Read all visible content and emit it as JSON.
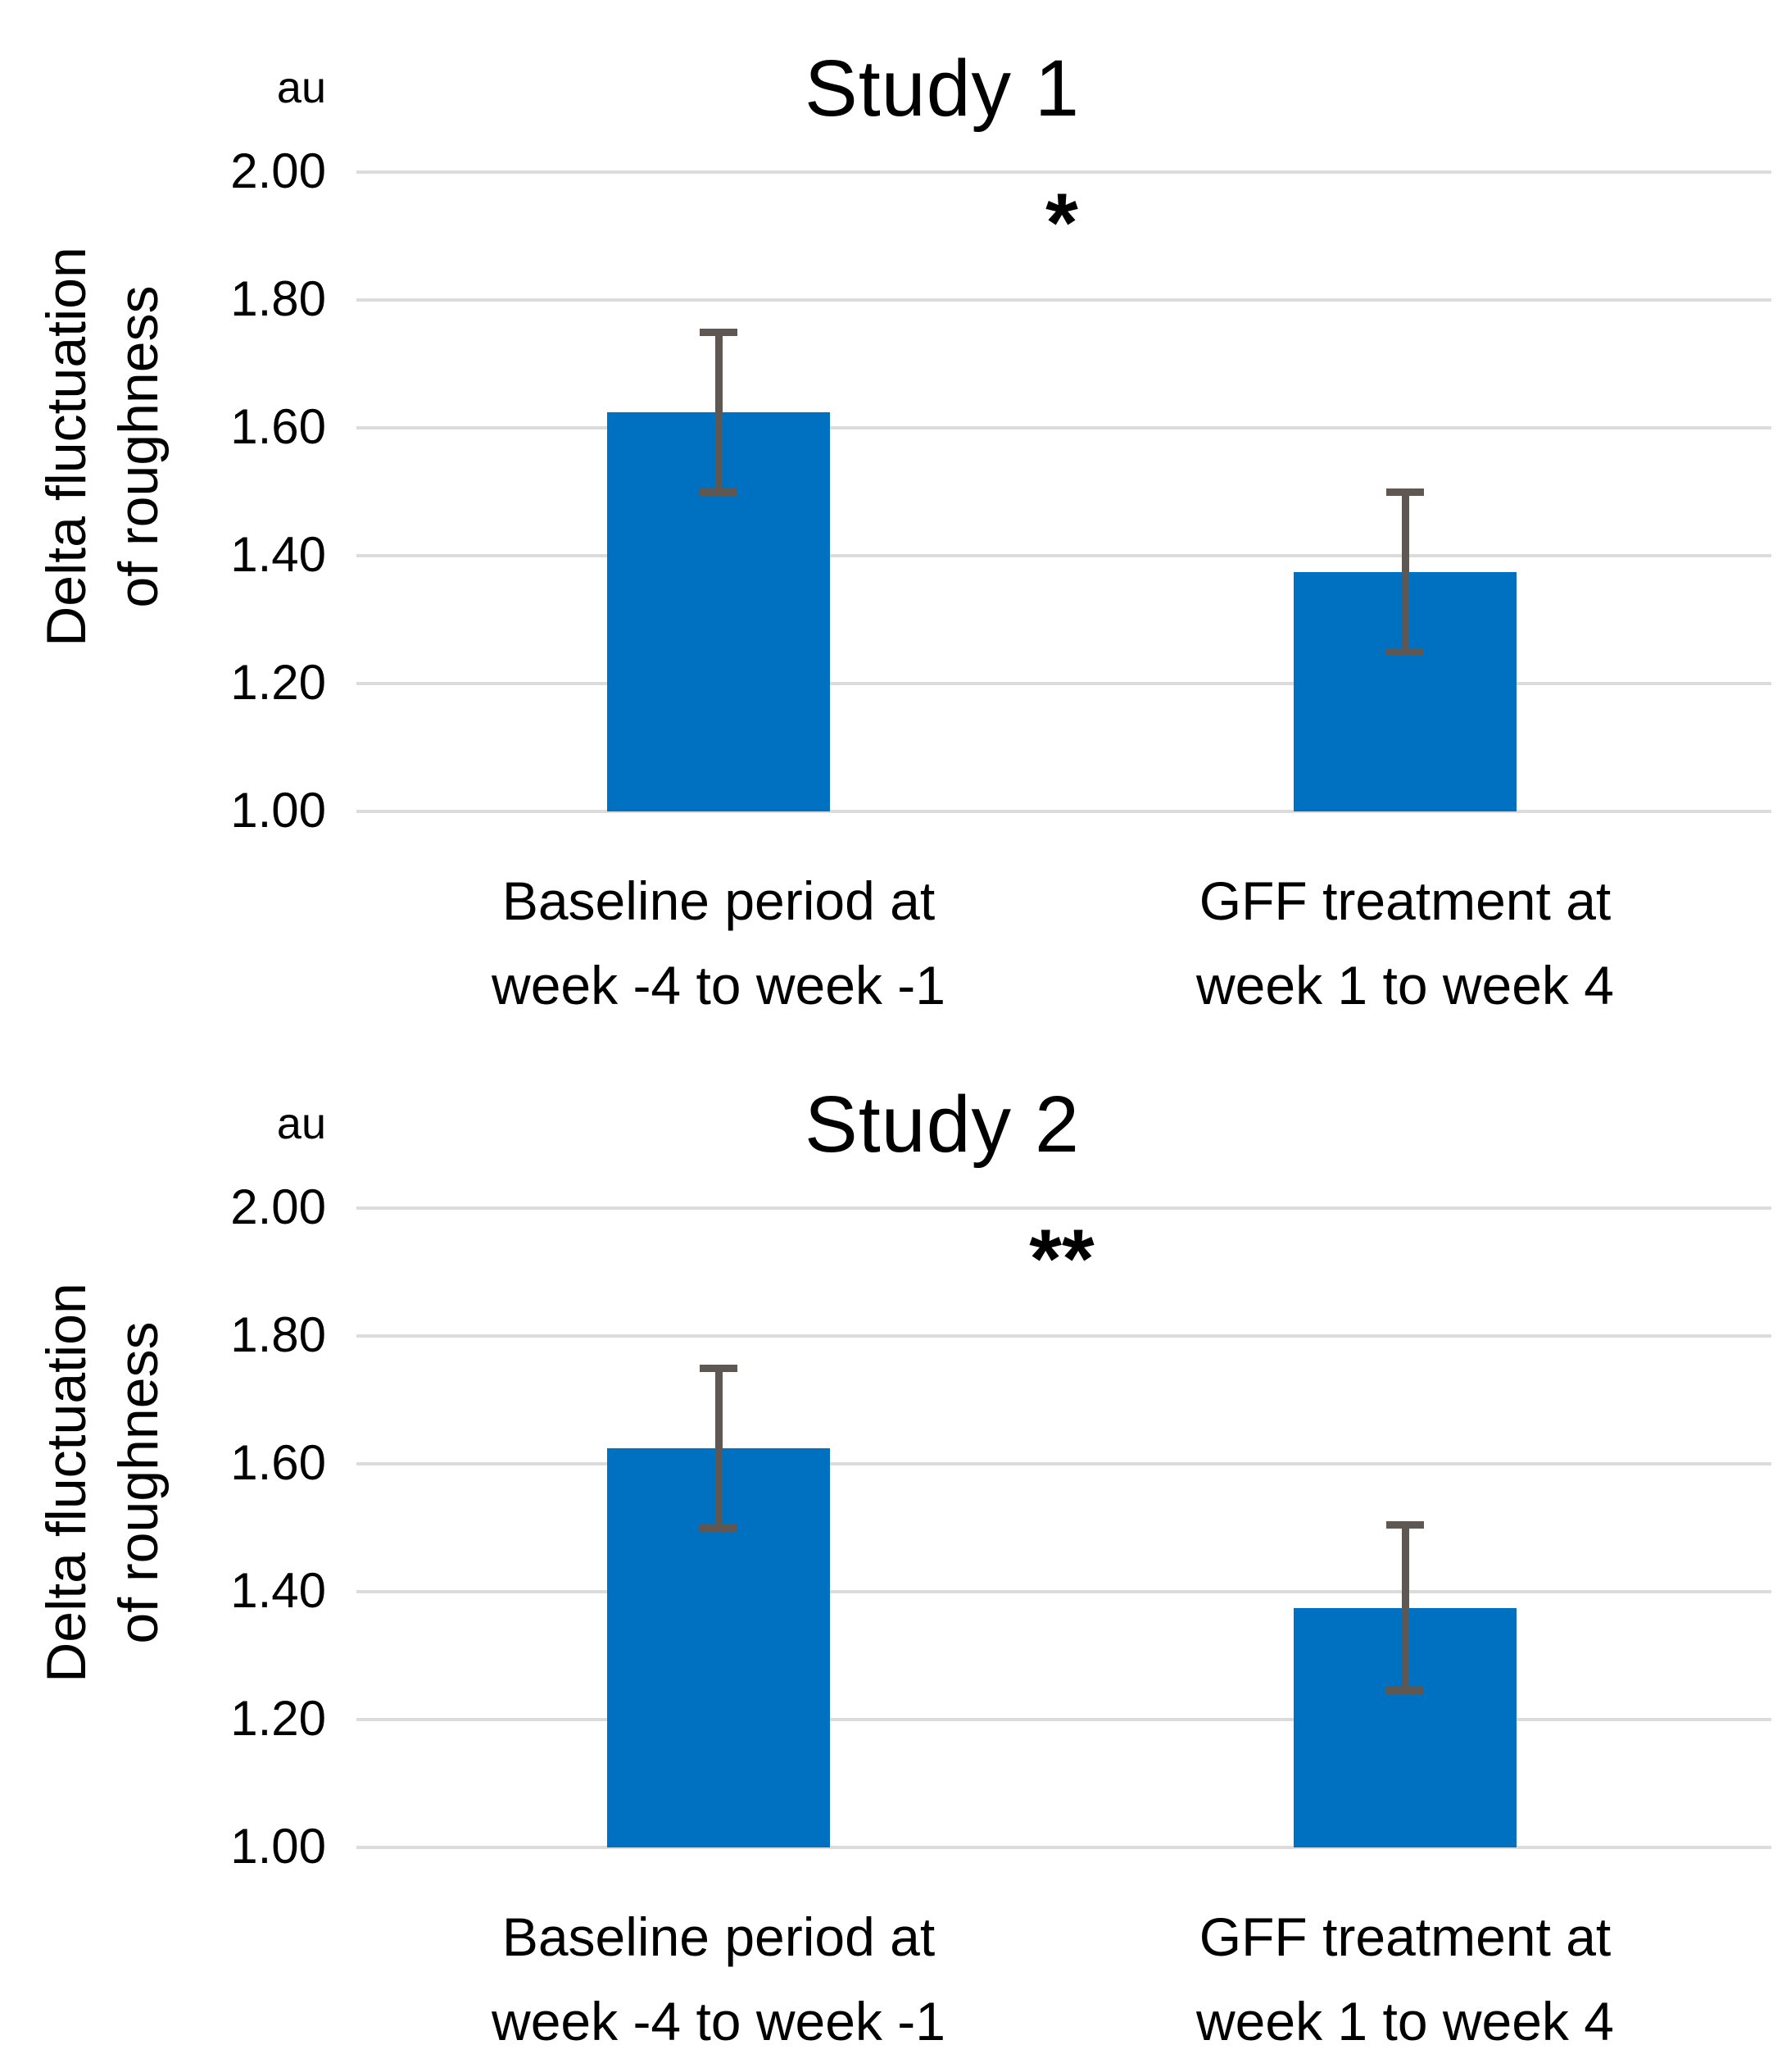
{
  "page": {
    "background": "#ffffff"
  },
  "chart_data": [
    {
      "type": "bar",
      "title": "Study 1",
      "unit": "au",
      "ylabel_lines": [
        "Delta fluctuation",
        "of roughness"
      ],
      "categories": [
        [
          "Baseline period at",
          "week -4 to week -1"
        ],
        [
          "GFF treatment at",
          "week 1 to week 4"
        ]
      ],
      "values": [
        1.625,
        1.375
      ],
      "error_high": [
        1.75,
        1.5
      ],
      "error_low": [
        1.5,
        1.25
      ],
      "ylim": [
        1.0,
        2.0
      ],
      "yticks": [
        2.0,
        1.8,
        1.6,
        1.4,
        1.2,
        1.0
      ],
      "ytick_labels": [
        "2.00",
        "1.80",
        "1.60",
        "1.40",
        "1.20",
        "1.00"
      ],
      "grid": true,
      "legend": "none",
      "significance": {
        "label": "*",
        "level": 1.835,
        "from_category": 0,
        "to_category": 1
      },
      "bar_color": "#0070C0",
      "error_color": "#5F5751",
      "significance_color": "#7E7672",
      "gridline_color": "#dcdcdc"
    },
    {
      "type": "bar",
      "title": "Study 2",
      "unit": "au",
      "ylabel_lines": [
        "Delta fluctuation",
        "of roughness"
      ],
      "categories": [
        [
          "Baseline period at",
          "week -4 to week -1"
        ],
        [
          "GFF treatment at",
          "week 1 to week 4"
        ]
      ],
      "values": [
        1.625,
        1.375
      ],
      "error_high": [
        1.75,
        1.505
      ],
      "error_low": [
        1.5,
        1.245
      ],
      "ylim": [
        1.0,
        2.0
      ],
      "yticks": [
        2.0,
        1.8,
        1.6,
        1.4,
        1.2,
        1.0
      ],
      "ytick_labels": [
        "2.00",
        "1.80",
        "1.60",
        "1.40",
        "1.20",
        "1.00"
      ],
      "grid": true,
      "legend": "none",
      "significance": {
        "label": "**",
        "level": 1.835,
        "from_category": 0,
        "to_category": 1
      },
      "bar_color": "#0070C0",
      "error_color": "#5F5751",
      "significance_color": "#7E7672",
      "gridline_color": "#dcdcdc"
    }
  ]
}
